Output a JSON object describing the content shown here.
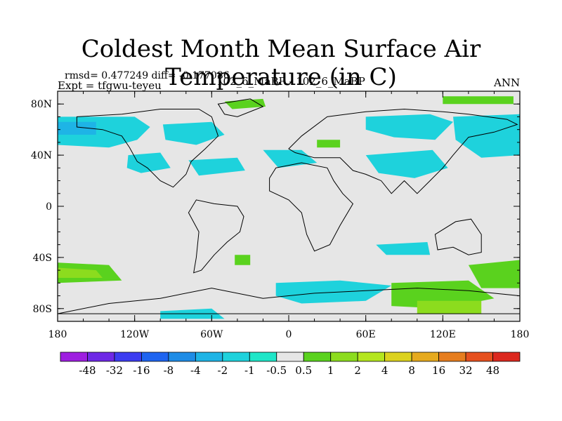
{
  "chart_data": {
    "type": "heatmap",
    "title": "Coldest Month Mean Surface Air Temperature (in C)",
    "stats_label": "rmsd= 0.477249 diff= -0.177086",
    "experiment_label": "Expt = tfgwu-teyeu",
    "comparison_label": "102_6_MaBP - 102_6_MaBP",
    "season_label": "ANN",
    "xlim": [
      -180,
      180
    ],
    "ylim": [
      -90,
      90
    ],
    "x_ticks": [
      {
        "value": -180,
        "label": "180"
      },
      {
        "value": -120,
        "label": "120W"
      },
      {
        "value": -60,
        "label": "60W"
      },
      {
        "value": 0,
        "label": "0"
      },
      {
        "value": 60,
        "label": "60E"
      },
      {
        "value": 120,
        "label": "120E"
      },
      {
        "value": 180,
        "label": "180"
      }
    ],
    "y_ticks": [
      {
        "value": 80,
        "label": "80N"
      },
      {
        "value": 40,
        "label": "40N"
      },
      {
        "value": 0,
        "label": "0"
      },
      {
        "value": -40,
        "label": "40S"
      },
      {
        "value": -80,
        "label": "80S"
      }
    ],
    "colorbar": {
      "colors": [
        "#9e1ee0",
        "#6e28e6",
        "#3c3cf0",
        "#1e64f0",
        "#1e8ce6",
        "#1eb4e6",
        "#1ed2dc",
        "#1ee6c8",
        "#e6e6e6",
        "#5ad21e",
        "#8cdc1e",
        "#b4e61e",
        "#dcd21e",
        "#e6aa1e",
        "#e67d1e",
        "#e6501e",
        "#dc281e"
      ],
      "labels": [
        "-48",
        "-32",
        "-16",
        "-8",
        "-4",
        "-2",
        "-1",
        "-0.5",
        "0.5",
        "1",
        "2",
        "4",
        "8",
        "16",
        "32",
        "48"
      ]
    },
    "regions": [
      {
        "name": "north-pacific-band",
        "bin": 6,
        "points": [
          [
            -180,
            70
          ],
          [
            -120,
            70
          ],
          [
            -108,
            62
          ],
          [
            -118,
            52
          ],
          [
            -140,
            46
          ],
          [
            -180,
            48
          ]
        ]
      },
      {
        "name": "north-pacific-core",
        "bin": 5,
        "points": [
          [
            -180,
            66
          ],
          [
            -150,
            66
          ],
          [
            -150,
            56
          ],
          [
            -180,
            56
          ]
        ]
      },
      {
        "name": "north-america-belt",
        "bin": 6,
        "points": [
          [
            -98,
            64
          ],
          [
            -60,
            66
          ],
          [
            -50,
            56
          ],
          [
            -72,
            48
          ],
          [
            -96,
            52
          ]
        ]
      },
      {
        "name": "north-america-west",
        "bin": 6,
        "points": [
          [
            -125,
            40
          ],
          [
            -100,
            42
          ],
          [
            -92,
            30
          ],
          [
            -115,
            26
          ],
          [
            -126,
            30
          ]
        ]
      },
      {
        "name": "west-atlantic",
        "bin": 6,
        "points": [
          [
            -78,
            36
          ],
          [
            -40,
            38
          ],
          [
            -34,
            28
          ],
          [
            -70,
            24
          ]
        ]
      },
      {
        "name": "north-atlantic",
        "bin": 6,
        "points": [
          [
            -20,
            44
          ],
          [
            10,
            44
          ],
          [
            22,
            34
          ],
          [
            -8,
            30
          ]
        ]
      },
      {
        "name": "greenland-patch",
        "bin": 9,
        "points": [
          [
            -50,
            82
          ],
          [
            -20,
            84
          ],
          [
            -18,
            78
          ],
          [
            -44,
            76
          ]
        ]
      },
      {
        "name": "arctic-strip",
        "bin": 9,
        "points": [
          [
            120,
            86
          ],
          [
            175,
            86
          ],
          [
            175,
            80
          ],
          [
            120,
            80
          ]
        ]
      },
      {
        "name": "eurasia-north",
        "bin": 6,
        "points": [
          [
            60,
            70
          ],
          [
            110,
            72
          ],
          [
            128,
            66
          ],
          [
            114,
            52
          ],
          [
            82,
            54
          ],
          [
            60,
            60
          ]
        ]
      },
      {
        "name": "asia-central",
        "bin": 6,
        "points": [
          [
            60,
            40
          ],
          [
            112,
            44
          ],
          [
            124,
            30
          ],
          [
            98,
            22
          ],
          [
            70,
            26
          ]
        ]
      },
      {
        "name": "north-pacific-east",
        "bin": 6,
        "points": [
          [
            128,
            70
          ],
          [
            180,
            72
          ],
          [
            180,
            40
          ],
          [
            150,
            38
          ],
          [
            130,
            52
          ]
        ]
      },
      {
        "name": "eurasia-green",
        "bin": 9,
        "points": [
          [
            22,
            52
          ],
          [
            40,
            52
          ],
          [
            40,
            46
          ],
          [
            22,
            46
          ]
        ]
      },
      {
        "name": "south-indian-band",
        "bin": 6,
        "points": [
          [
            68,
            -30
          ],
          [
            108,
            -28
          ],
          [
            110,
            -38
          ],
          [
            76,
            -38
          ]
        ]
      },
      {
        "name": "south-atlantic-patch",
        "bin": 9,
        "points": [
          [
            -42,
            -38
          ],
          [
            -30,
            -38
          ],
          [
            -30,
            -46
          ],
          [
            -42,
            -46
          ]
        ]
      },
      {
        "name": "southern-ocean-green",
        "bin": 9,
        "points": [
          [
            -180,
            -44
          ],
          [
            -140,
            -46
          ],
          [
            -130,
            -58
          ],
          [
            -180,
            -60
          ]
        ]
      },
      {
        "name": "southern-ocean-core",
        "bin": 10,
        "points": [
          [
            -180,
            -48
          ],
          [
            -150,
            -50
          ],
          [
            -145,
            -56
          ],
          [
            -180,
            -56
          ]
        ]
      },
      {
        "name": "south-pacific-east",
        "bin": 9,
        "points": [
          [
            140,
            -46
          ],
          [
            180,
            -42
          ],
          [
            180,
            -64
          ],
          [
            150,
            -64
          ]
        ]
      },
      {
        "name": "antarctic-coast-east",
        "bin": 6,
        "points": [
          [
            -10,
            -60
          ],
          [
            40,
            -58
          ],
          [
            80,
            -62
          ],
          [
            60,
            -74
          ],
          [
            10,
            -76
          ],
          [
            -10,
            -70
          ]
        ]
      },
      {
        "name": "antarctic-coast-green",
        "bin": 9,
        "points": [
          [
            80,
            -60
          ],
          [
            140,
            -58
          ],
          [
            160,
            -72
          ],
          [
            120,
            -80
          ],
          [
            80,
            -78
          ]
        ]
      },
      {
        "name": "antarctic-yellow",
        "bin": 10,
        "points": [
          [
            100,
            -74
          ],
          [
            150,
            -74
          ],
          [
            150,
            -84
          ],
          [
            100,
            -84
          ]
        ]
      },
      {
        "name": "antarctic-west",
        "bin": 6,
        "points": [
          [
            -100,
            -82
          ],
          [
            -60,
            -80
          ],
          [
            -50,
            -88
          ],
          [
            -100,
            -88
          ]
        ]
      }
    ],
    "coastlines": [
      {
        "name": "north-america",
        "points": [
          [
            -165,
            70
          ],
          [
            -130,
            72
          ],
          [
            -100,
            76
          ],
          [
            -70,
            76
          ],
          [
            -60,
            70
          ],
          [
            -55,
            55
          ],
          [
            -65,
            45
          ],
          [
            -76,
            35
          ],
          [
            -80,
            25
          ],
          [
            -90,
            15
          ],
          [
            -100,
            20
          ],
          [
            -110,
            30
          ],
          [
            -118,
            35
          ],
          [
            -124,
            46
          ],
          [
            -130,
            55
          ],
          [
            -145,
            60
          ],
          [
            -165,
            62
          ]
        ]
      },
      {
        "name": "greenland",
        "points": [
          [
            -55,
            80
          ],
          [
            -30,
            84
          ],
          [
            -20,
            78
          ],
          [
            -40,
            70
          ],
          [
            -50,
            72
          ]
        ]
      },
      {
        "name": "south-america",
        "points": [
          [
            -58,
            2
          ],
          [
            -40,
            0
          ],
          [
            -35,
            -8
          ],
          [
            -38,
            -20
          ],
          [
            -48,
            -28
          ],
          [
            -58,
            -38
          ],
          [
            -68,
            -50
          ],
          [
            -74,
            -52
          ],
          [
            -72,
            -40
          ],
          [
            -70,
            -20
          ],
          [
            -78,
            -5
          ],
          [
            -72,
            5
          ]
        ]
      },
      {
        "name": "africa",
        "points": [
          [
            -10,
            30
          ],
          [
            10,
            34
          ],
          [
            30,
            30
          ],
          [
            35,
            20
          ],
          [
            42,
            10
          ],
          [
            50,
            2
          ],
          [
            40,
            -15
          ],
          [
            32,
            -30
          ],
          [
            20,
            -35
          ],
          [
            14,
            -22
          ],
          [
            10,
            -5
          ],
          [
            0,
            5
          ],
          [
            -15,
            12
          ],
          [
            -15,
            22
          ]
        ]
      },
      {
        "name": "eurasia",
        "points": [
          [
            0,
            45
          ],
          [
            10,
            55
          ],
          [
            30,
            70
          ],
          [
            60,
            74
          ],
          [
            90,
            76
          ],
          [
            120,
            74
          ],
          [
            140,
            72
          ],
          [
            170,
            68
          ],
          [
            178,
            64
          ],
          [
            160,
            58
          ],
          [
            140,
            54
          ],
          [
            128,
            40
          ],
          [
            120,
            30
          ],
          [
            110,
            20
          ],
          [
            100,
            10
          ],
          [
            90,
            20
          ],
          [
            80,
            10
          ],
          [
            72,
            20
          ],
          [
            60,
            25
          ],
          [
            50,
            28
          ],
          [
            40,
            38
          ],
          [
            20,
            38
          ],
          [
            5,
            42
          ]
        ]
      },
      {
        "name": "australia",
        "points": [
          [
            114,
            -22
          ],
          [
            130,
            -12
          ],
          [
            142,
            -10
          ],
          [
            150,
            -22
          ],
          [
            150,
            -36
          ],
          [
            140,
            -38
          ],
          [
            128,
            -32
          ],
          [
            116,
            -34
          ]
        ]
      },
      {
        "name": "antarctica",
        "points": [
          [
            -180,
            -84
          ],
          [
            -140,
            -76
          ],
          [
            -100,
            -72
          ],
          [
            -60,
            -64
          ],
          [
            -20,
            -72
          ],
          [
            20,
            -68
          ],
          [
            60,
            -66
          ],
          [
            100,
            -64
          ],
          [
            140,
            -66
          ],
          [
            180,
            -70
          ],
          [
            180,
            -84
          ]
        ]
      }
    ]
  }
}
